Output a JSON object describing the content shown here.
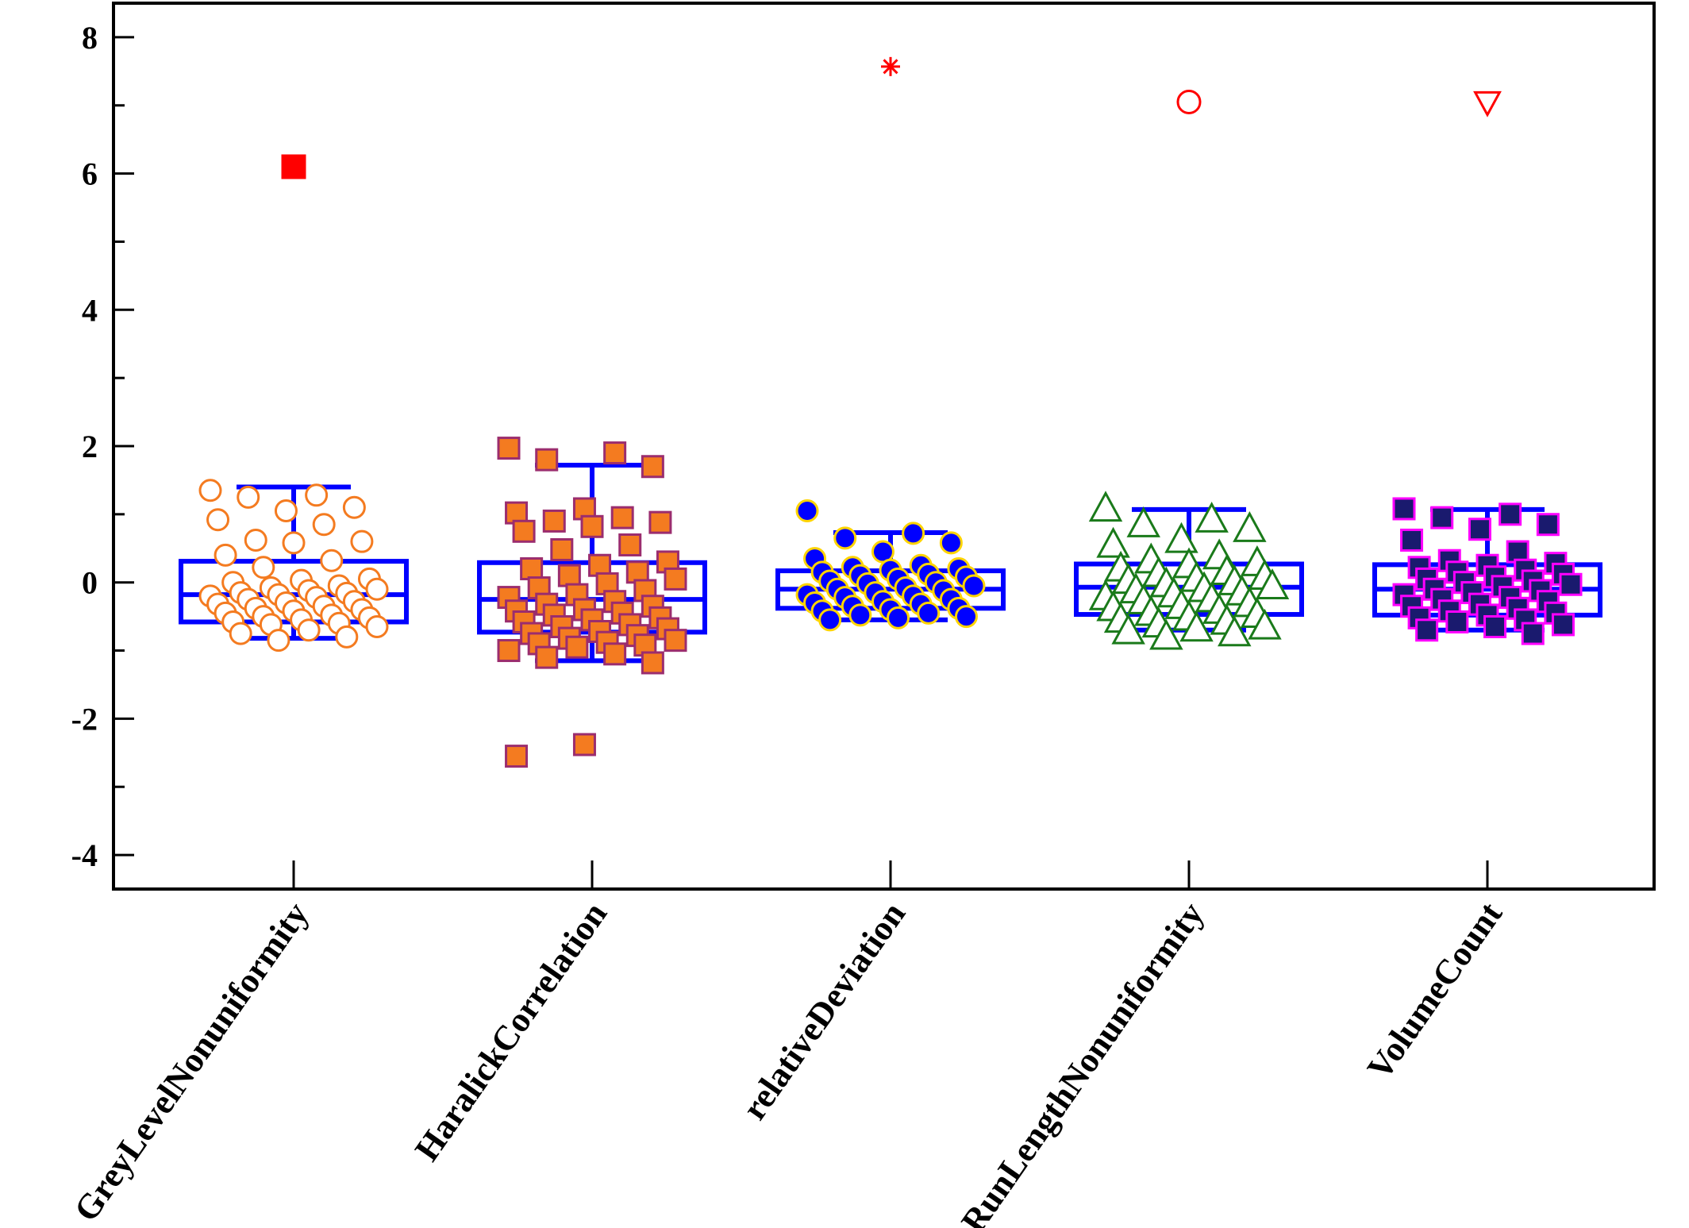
{
  "chart_data": {
    "type": "box",
    "title": "",
    "xlabel": "",
    "ylabel": "",
    "ylim": [
      -4.5,
      8.5
    ],
    "y_ticks": [
      -4,
      -2,
      0,
      2,
      4,
      6,
      8
    ],
    "y_tick_labels": [
      "-4",
      "-2",
      "0",
      "2",
      "4",
      "6",
      "8"
    ],
    "grid": false,
    "legend": "none",
    "categories": [
      "GreyLevelNonuniformity",
      "HaralickCorrelation",
      "relativeDeviation",
      "RunLengthNonuniformity",
      "VolumeCount"
    ],
    "series": [
      {
        "category": "GreyLevelNonuniformity",
        "box": {
          "q1": -0.58,
          "median": -0.18,
          "q3": 0.31,
          "whisker_low": -0.82,
          "whisker_high": 1.4
        },
        "marker": "circle-open",
        "marker_fill": "#ffffff",
        "marker_stroke": "#f47b20",
        "mean_marker": {
          "shape": "square-filled",
          "color": "#ff0000",
          "value": 6.1
        },
        "points": [
          1.35,
          1.28,
          1.25,
          1.1,
          1.05,
          0.92,
          0.85,
          0.62,
          0.6,
          0.58,
          0.4,
          0.32,
          0.22,
          0.05,
          0.03,
          0.0,
          -0.05,
          -0.08,
          -0.1,
          -0.12,
          -0.15,
          -0.16,
          -0.18,
          -0.2,
          -0.22,
          -0.25,
          -0.28,
          -0.3,
          -0.32,
          -0.35,
          -0.38,
          -0.4,
          -0.42,
          -0.45,
          -0.48,
          -0.5,
          -0.52,
          -0.55,
          -0.58,
          -0.6,
          -0.62,
          -0.65,
          -0.7,
          -0.75,
          -0.8,
          -0.85
        ]
      },
      {
        "category": "HaralickCorrelation",
        "box": {
          "q1": -0.73,
          "median": -0.25,
          "q3": 0.29,
          "whisker_low": -1.15,
          "whisker_high": 1.72
        },
        "marker": "square-filled",
        "marker_fill": "#f47b20",
        "marker_stroke": "#9b2d6e",
        "mean_marker": null,
        "points": [
          1.97,
          1.9,
          1.8,
          1.7,
          1.08,
          1.02,
          0.95,
          0.9,
          0.88,
          0.82,
          0.75,
          0.55,
          0.48,
          0.3,
          0.25,
          0.2,
          0.15,
          0.1,
          0.05,
          -0.02,
          -0.08,
          -0.12,
          -0.18,
          -0.22,
          -0.28,
          -0.32,
          -0.35,
          -0.4,
          -0.42,
          -0.45,
          -0.48,
          -0.52,
          -0.55,
          -0.58,
          -0.62,
          -0.65,
          -0.68,
          -0.72,
          -0.75,
          -0.78,
          -0.82,
          -0.85,
          -0.88,
          -0.9,
          -0.92,
          -0.95,
          -1.0,
          -1.05,
          -1.1,
          -1.18,
          -2.38,
          -2.55
        ]
      },
      {
        "category": "relativeDeviation",
        "box": {
          "q1": -0.38,
          "median": -0.1,
          "q3": 0.17,
          "whisker_low": -0.55,
          "whisker_high": 0.73
        },
        "marker": "circle-filled",
        "marker_fill": "#0000ff",
        "marker_stroke": "#ffd400",
        "mean_marker": {
          "shape": "asterisk",
          "color": "#ff0000",
          "value": 7.57
        },
        "points": [
          1.05,
          0.72,
          0.65,
          0.58,
          0.45,
          0.35,
          0.25,
          0.22,
          0.2,
          0.18,
          0.15,
          0.12,
          0.1,
          0.08,
          0.05,
          0.02,
          0.0,
          -0.02,
          -0.05,
          -0.08,
          -0.1,
          -0.12,
          -0.15,
          -0.18,
          -0.2,
          -0.22,
          -0.25,
          -0.28,
          -0.3,
          -0.32,
          -0.35,
          -0.38,
          -0.4,
          -0.42,
          -0.45,
          -0.48,
          -0.5,
          -0.52,
          -0.55
        ]
      },
      {
        "category": "RunLengthNonuniformity",
        "box": {
          "q1": -0.47,
          "median": -0.07,
          "q3": 0.27,
          "whisker_low": -0.7,
          "whisker_high": 1.07
        },
        "marker": "triangle-open",
        "marker_fill": "#ffffff",
        "marker_stroke": "#1a7a1a",
        "mean_marker": {
          "shape": "circle-open",
          "color": "#ff0000",
          "value": 7.05
        },
        "points": [
          1.08,
          0.92,
          0.85,
          0.78,
          0.62,
          0.55,
          0.38,
          0.32,
          0.28,
          0.25,
          0.2,
          0.15,
          0.12,
          0.08,
          0.05,
          0.02,
          0.0,
          -0.03,
          -0.06,
          -0.1,
          -0.12,
          -0.15,
          -0.18,
          -0.22,
          -0.25,
          -0.28,
          -0.32,
          -0.35,
          -0.38,
          -0.42,
          -0.45,
          -0.48,
          -0.52,
          -0.55,
          -0.58,
          -0.62,
          -0.65,
          -0.68,
          -0.72,
          -0.75,
          -0.8
        ]
      },
      {
        "category": "VolumeCount",
        "box": {
          "q1": -0.48,
          "median": -0.1,
          "q3": 0.26,
          "whisker_low": -0.7,
          "whisker_high": 1.07
        },
        "marker": "square-filled",
        "marker_fill": "#1a1a6e",
        "marker_stroke": "#ff00ff",
        "mean_marker": {
          "shape": "triangle-down-open",
          "color": "#ff0000",
          "value": 7.05
        },
        "points": [
          1.08,
          1.0,
          0.95,
          0.85,
          0.78,
          0.62,
          0.45,
          0.32,
          0.28,
          0.25,
          0.22,
          0.18,
          0.15,
          0.12,
          0.08,
          0.05,
          0.02,
          0.0,
          -0.03,
          -0.06,
          -0.1,
          -0.12,
          -0.15,
          -0.18,
          -0.22,
          -0.25,
          -0.28,
          -0.32,
          -0.35,
          -0.38,
          -0.42,
          -0.45,
          -0.48,
          -0.52,
          -0.55,
          -0.58,
          -0.62,
          -0.65,
          -0.7,
          -0.75
        ]
      }
    ]
  },
  "colors": {
    "box_stroke": "#0000ff",
    "axis": "#000000"
  }
}
